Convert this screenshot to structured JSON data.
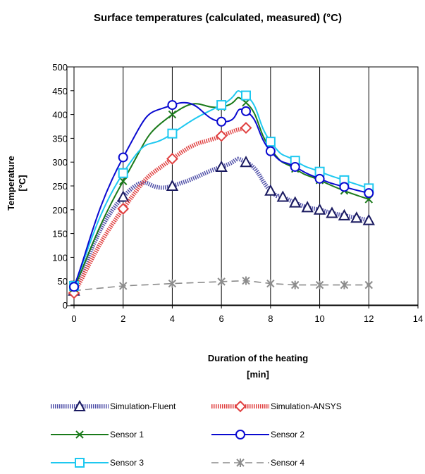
{
  "chart_data": {
    "type": "line",
    "title": "Surface temperatures (calculated, measured) (°C)",
    "xlabel": [
      "Duration of the heating",
      "[min]"
    ],
    "ylabel": [
      "Temperature",
      "[°C]"
    ],
    "xlim": [
      0,
      14
    ],
    "ylim": [
      0,
      500
    ],
    "xticks": [
      0,
      2,
      4,
      6,
      8,
      10,
      12,
      14
    ],
    "yticks": [
      0,
      50,
      100,
      150,
      200,
      250,
      300,
      350,
      400,
      450,
      500
    ],
    "grid": "vertical",
    "legend_position": "bottom",
    "series": [
      {
        "name": "Simulation-Fluent",
        "color": "#5050a8",
        "marker": "triangle",
        "line": "thick-dotted",
        "x": [
          0,
          2,
          4,
          6,
          7,
          8,
          8.5,
          9,
          9.5,
          10,
          10.5,
          11,
          11.5,
          12
        ],
        "y": [
          30,
          227,
          250,
          290,
          300,
          240,
          227,
          215,
          205,
          200,
          193,
          188,
          183,
          178
        ]
      },
      {
        "name": "Simulation-ANSYS",
        "color": "#e04040",
        "marker": "diamond",
        "line": "thick-dotted",
        "x": [
          0,
          2,
          4,
          6,
          7
        ],
        "y": [
          25,
          202,
          307,
          355,
          372
        ]
      },
      {
        "name": "Sensor 1",
        "color": "#1a7a1a",
        "marker": "x",
        "line": "solid",
        "x": [
          0,
          2,
          4,
          6,
          7,
          8,
          9,
          10,
          11,
          12
        ],
        "y": [
          35,
          260,
          400,
          416,
          425,
          328,
          286,
          262,
          240,
          222
        ]
      },
      {
        "name": "Sensor 2",
        "color": "#0a0ad0",
        "marker": "circle",
        "line": "solid",
        "x": [
          0,
          2,
          4,
          6,
          7,
          8,
          9,
          10,
          11,
          12
        ],
        "y": [
          38,
          310,
          420,
          385,
          407,
          323,
          290,
          265,
          248,
          235
        ]
      },
      {
        "name": "Sensor 3",
        "color": "#1ec8f0",
        "marker": "square",
        "line": "solid",
        "x": [
          0,
          2,
          4,
          6,
          7,
          8,
          9,
          10,
          11,
          12
        ],
        "y": [
          40,
          277,
          360,
          420,
          440,
          343,
          303,
          280,
          262,
          245
        ]
      },
      {
        "name": "Sensor 4",
        "color": "#8c8c8c",
        "marker": "asterisk",
        "line": "dashed",
        "x": [
          0,
          2,
          4,
          6,
          7,
          8,
          9,
          10,
          11,
          12
        ],
        "y": [
          30,
          40,
          45,
          49,
          51,
          45,
          42,
          42,
          42,
          42
        ]
      }
    ]
  }
}
